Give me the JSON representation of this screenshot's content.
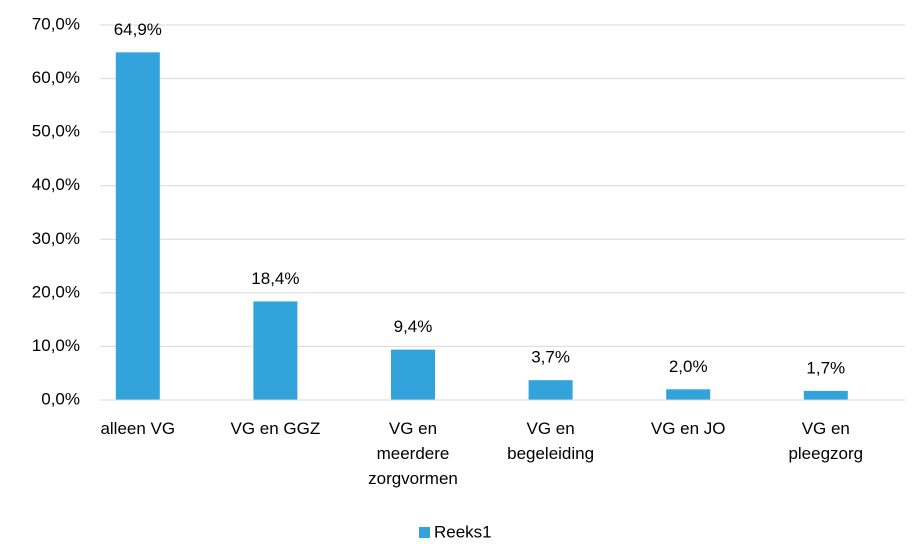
{
  "chart_data": {
    "type": "bar",
    "categories": [
      "alleen VG",
      "VG en GGZ",
      "VG en meerdere zorgvormen",
      "VG en begeleiding",
      "VG en JO",
      "VG en pleegzorg"
    ],
    "series": [
      {
        "name": "Reeks1",
        "color": "#32a4db",
        "values": [
          64.9,
          18.4,
          9.4,
          3.7,
          2.0,
          1.7
        ],
        "value_labels": [
          "64,9%",
          "18,4%",
          "9,4%",
          "3,7%",
          "2,0%",
          "1,7%"
        ]
      }
    ],
    "ylim": [
      0,
      70
    ],
    "yticks": [
      {
        "value": 0,
        "label": "0,0%"
      },
      {
        "value": 10,
        "label": "10,0%"
      },
      {
        "value": 20,
        "label": "20,0%"
      },
      {
        "value": 30,
        "label": "30,0%"
      },
      {
        "value": 40,
        "label": "40,0%"
      },
      {
        "value": 50,
        "label": "50,0%"
      },
      {
        "value": 60,
        "label": "60,0%"
      },
      {
        "value": 70,
        "label": "70,0%"
      }
    ],
    "grid": true,
    "legend": "bottom"
  }
}
